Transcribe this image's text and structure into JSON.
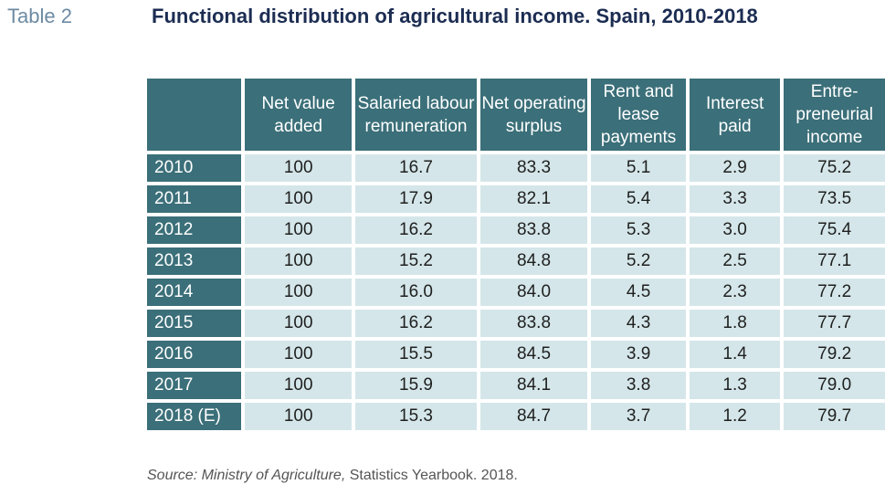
{
  "label": "Table 2",
  "title": "Functional distribution of agricultural income. Spain, 2010-2018",
  "columns": [
    "",
    "Net value added",
    "Salaried labour remuneration",
    "Net operating surplus",
    "Rent and lease payments",
    "Interest paid",
    "Entre-preneurial income"
  ],
  "rows": [
    {
      "year": "2010",
      "values": [
        "100",
        "16.7",
        "83.3",
        "5.1",
        "2.9",
        "75.2"
      ]
    },
    {
      "year": "2011",
      "values": [
        "100",
        "17.9",
        "82.1",
        "5.4",
        "3.3",
        "73.5"
      ]
    },
    {
      "year": "2012",
      "values": [
        "100",
        "16.2",
        "83.8",
        "5.3",
        "3.0",
        "75.4"
      ]
    },
    {
      "year": "2013",
      "values": [
        "100",
        "15.2",
        "84.8",
        "5.2",
        "2.5",
        "77.1"
      ]
    },
    {
      "year": "2014",
      "values": [
        "100",
        "16.0",
        "84.0",
        "4.5",
        "2.3",
        "77.2"
      ]
    },
    {
      "year": "2015",
      "values": [
        "100",
        "16.2",
        "83.8",
        "4.3",
        "1.8",
        "77.7"
      ]
    },
    {
      "year": "2016",
      "values": [
        "100",
        "15.5",
        "84.5",
        "3.9",
        "1.4",
        "79.2"
      ]
    },
    {
      "year": "2017",
      "values": [
        "100",
        "15.9",
        "84.1",
        "3.8",
        "1.3",
        "79.0"
      ]
    },
    {
      "year": "2018 (E)",
      "values": [
        "100",
        "15.3",
        "84.7",
        "3.7",
        "1.2",
        "79.7"
      ]
    }
  ],
  "source": {
    "prefix": "Source: Ministry of Agriculture,",
    "suffix": " Statistics Yearbook. 2018."
  },
  "colors": {
    "header_bg": "#3b6f79",
    "cell_bg": "#d4e6e9",
    "title": "#1c2d52",
    "label": "#6c8aa3"
  }
}
